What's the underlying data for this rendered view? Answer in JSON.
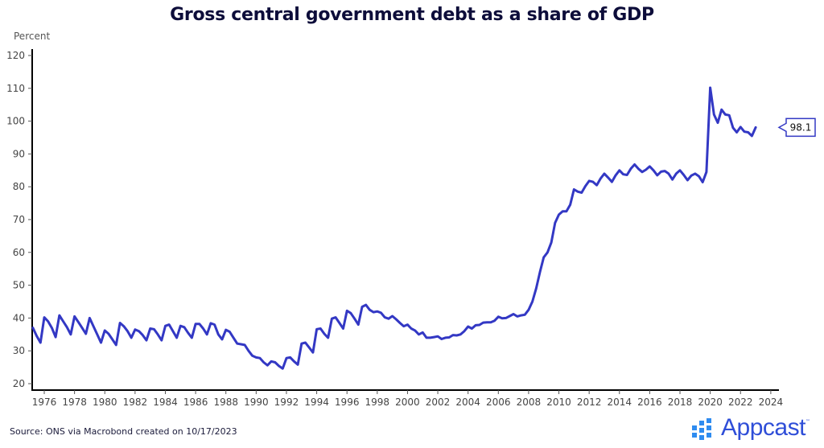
{
  "chart_data": {
    "type": "line",
    "title": "Gross central government debt as a share of GDP",
    "ylabel": "Percent",
    "xlabel": "",
    "ylim": [
      20,
      120
    ],
    "xlim": [
      1975.2,
      2024.5
    ],
    "yticks": [
      20,
      30,
      40,
      50,
      60,
      70,
      80,
      90,
      100,
      110,
      120
    ],
    "xticks": [
      1976,
      1978,
      1980,
      1982,
      1984,
      1986,
      1988,
      1990,
      1992,
      1994,
      1996,
      1998,
      2000,
      2002,
      2004,
      2006,
      2008,
      2010,
      2012,
      2014,
      2016,
      2018,
      2020,
      2022,
      2024
    ],
    "grid": false,
    "legend": "none",
    "series": [
      {
        "name": "Gross central government debt (% of GDP)",
        "color": "#3338c4",
        "x_start": 1975.25,
        "x_step": 0.25,
        "values": [
          37.0,
          34.5,
          32.5,
          40.2,
          39.0,
          37.0,
          34.2,
          40.8,
          39.0,
          37.2,
          35.0,
          40.5,
          38.8,
          37.0,
          35.2,
          40.0,
          37.5,
          35.0,
          32.5,
          36.2,
          35.2,
          33.5,
          31.8,
          38.5,
          37.5,
          36.0,
          34.0,
          36.5,
          36.0,
          34.8,
          33.2,
          36.8,
          36.6,
          35.0,
          33.2,
          37.6,
          38.0,
          36.0,
          34.0,
          37.6,
          37.2,
          35.5,
          34.0,
          38.2,
          38.2,
          36.8,
          35.0,
          38.4,
          38.0,
          35.0,
          33.5,
          36.4,
          35.8,
          34.0,
          32.2,
          32.0,
          31.8,
          30.0,
          28.5,
          28.0,
          27.8,
          26.5,
          25.6,
          26.8,
          26.5,
          25.4,
          24.6,
          27.8,
          28.0,
          26.8,
          25.8,
          32.2,
          32.5,
          31.0,
          29.5,
          36.6,
          36.8,
          35.2,
          34.0,
          39.8,
          40.2,
          38.5,
          36.8,
          42.2,
          41.5,
          39.8,
          38.0,
          43.4,
          44.0,
          42.5,
          41.8,
          42.0,
          41.6,
          40.2,
          39.8,
          40.6,
          39.6,
          38.5,
          37.5,
          38.0,
          36.8,
          36.2,
          35.0,
          35.6,
          34.0,
          34.0,
          34.2,
          34.4,
          33.6,
          34.0,
          34.1,
          34.8,
          34.7,
          35.0,
          36.0,
          37.4,
          36.8,
          37.8,
          37.9,
          38.6,
          38.7,
          38.7,
          39.2,
          40.4,
          39.9,
          40.0,
          40.6,
          41.2,
          40.5,
          40.8,
          41.0,
          42.5,
          45.0,
          49.0,
          54.0,
          58.5,
          60.0,
          63.0,
          69.0,
          71.5,
          72.5,
          72.5,
          74.5,
          79.2,
          78.5,
          78.2,
          80.2,
          81.8,
          81.5,
          80.5,
          82.5,
          84.0,
          82.8,
          81.5,
          83.5,
          85.0,
          83.8,
          83.6,
          85.5,
          86.8,
          85.5,
          84.5,
          85.2,
          86.2,
          85.0,
          83.5,
          84.6,
          84.8,
          84.0,
          82.2,
          84.0,
          85.0,
          83.6,
          82.0,
          83.4,
          84.0,
          83.2,
          81.4,
          84.5,
          110.2,
          102.0,
          99.5,
          103.5,
          102.0,
          101.8,
          98.0,
          96.6,
          98.2,
          96.8,
          96.6,
          95.5,
          98.1
        ]
      }
    ],
    "annotations": [
      {
        "label": "98.1",
        "type": "last-value-callout"
      }
    ]
  },
  "footer": {
    "source": "Source: ONS via Macrobond created on 10/17/2023",
    "logo_text": "Appcast",
    "logo_tm": "™"
  },
  "colors": {
    "line": "#3338c4",
    "title": "#0d0d3a",
    "logo": "#2f4ed8",
    "axis": "#000000"
  }
}
